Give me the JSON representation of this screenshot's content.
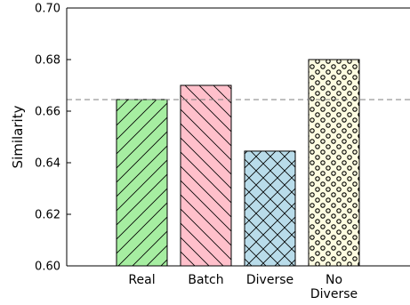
{
  "chart_data": {
    "type": "bar",
    "title": "",
    "xlabel": "",
    "ylabel": "Similarity",
    "ylim": [
      0.6,
      0.7
    ],
    "yticks": [
      "0.60",
      "0.62",
      "0.64",
      "0.66",
      "0.68",
      "0.70"
    ],
    "grid": false,
    "reference_line": {
      "value": 0.6645,
      "style": "dashed",
      "color": "#7f7f7f"
    },
    "bars": [
      {
        "category": [
          "Real"
        ],
        "value": 0.6645,
        "fill": "#a6eea1",
        "pattern": "forward-diagonal"
      },
      {
        "category": [
          "Batch"
        ],
        "value": 0.67,
        "fill": "#ffc0cb",
        "pattern": "back-diagonal"
      },
      {
        "category": [
          "Diverse"
        ],
        "value": 0.6445,
        "fill": "#b9dcea",
        "pattern": "crosshatch"
      },
      {
        "category": [
          "No",
          "Diverse"
        ],
        "value": 0.68,
        "fill": "#fffde1",
        "pattern": "circles"
      }
    ]
  }
}
